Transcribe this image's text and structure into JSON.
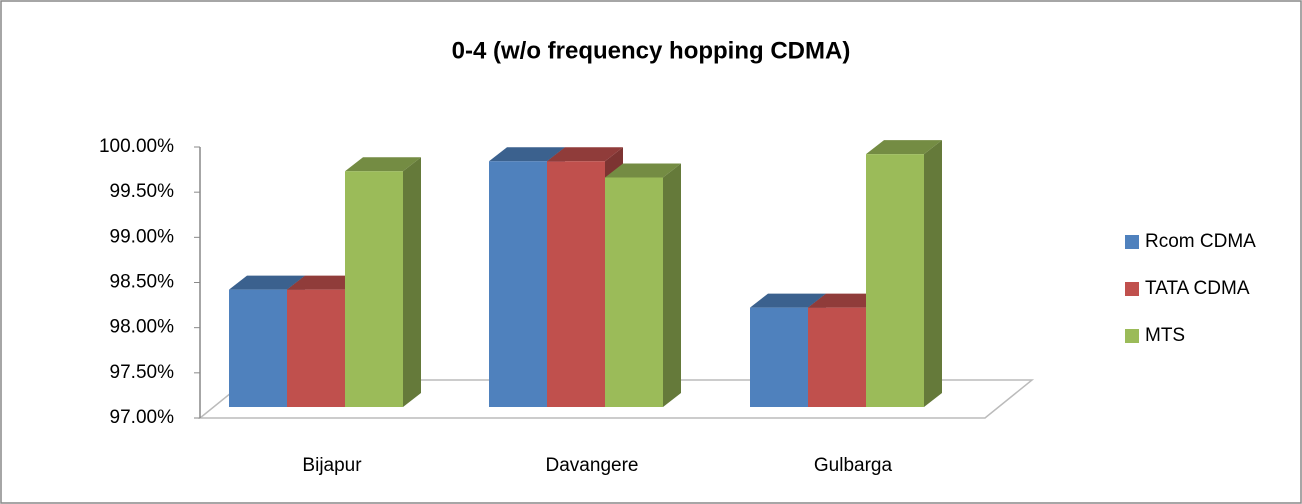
{
  "chart_data": {
    "type": "bar3d",
    "title": "0-4 (w/o frequency hopping CDMA)",
    "categories": [
      "Bijapur",
      "Davangere",
      "Gulbarga"
    ],
    "series": [
      {
        "name": "Rcom CDMA",
        "color": "#4f81bd",
        "values": [
          98.3,
          99.72,
          98.1
        ]
      },
      {
        "name": "TATA CDMA",
        "color": "#c0504d",
        "values": [
          98.3,
          99.72,
          98.1
        ]
      },
      {
        "name": "MTS",
        "color": "#9bbb59",
        "values": [
          99.61,
          99.54,
          99.8
        ]
      }
    ],
    "ylim": [
      97,
      100
    ],
    "yticks": [
      {
        "value": 97,
        "label": "97.00%"
      },
      {
        "value": 97.5,
        "label": "97.50%"
      },
      {
        "value": 98,
        "label": "98.00%"
      },
      {
        "value": 98.5,
        "label": "98.50%"
      },
      {
        "value": 99,
        "label": "99.00%"
      },
      {
        "value": 99.5,
        "label": "99.50%"
      },
      {
        "value": 100,
        "label": "100.00%"
      }
    ],
    "legend": "right"
  }
}
